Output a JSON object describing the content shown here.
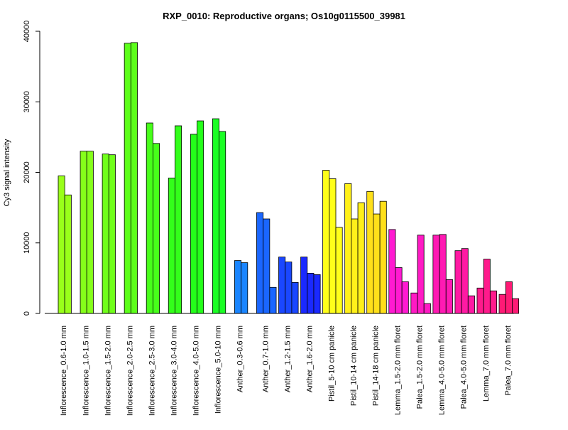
{
  "chart_data": {
    "type": "bar",
    "title": "RXP_0010: Reproductive organs; Os10g0115500_39981",
    "xlabel": "",
    "ylabel": "Cy3 signal intensity",
    "ylim": [
      0,
      40000
    ],
    "yticks": [
      0,
      10000,
      20000,
      30000,
      40000
    ],
    "grid": false,
    "legend": "none",
    "groups": [
      {
        "label": "Inflorescence_0.6-1.0 mm",
        "color": "#99ff1a",
        "values": [
          19500,
          16800
        ]
      },
      {
        "label": "Inflorescence_1.0-1.5 mm",
        "color": "#85ff1a",
        "values": [
          23000,
          23000
        ]
      },
      {
        "label": "Inflorescence_1.5-2.0 mm",
        "color": "#70ff1a",
        "values": [
          22600,
          22500
        ]
      },
      {
        "label": "Inflorescence_2.0-2.5 mm",
        "color": "#5cff1a",
        "values": [
          38300,
          38400
        ]
      },
      {
        "label": "Inflorescence_2.5-3.0 mm",
        "color": "#47ff1a",
        "values": [
          27000,
          24100
        ]
      },
      {
        "label": "Inflorescence_3.0-4.0 mm",
        "color": "#33ff1a",
        "values": [
          19200,
          26600
        ]
      },
      {
        "label": "Inflorescence_4.0-5.0 mm",
        "color": "#24ff1a",
        "values": [
          25400,
          27300
        ]
      },
      {
        "label": "Inflorescence_5.0-10 mm",
        "color": "#1aff24",
        "values": [
          27600,
          25800
        ]
      },
      {
        "label": "Anther_0.3-0.6 mm",
        "color": "#1a85ff",
        "values": [
          7500,
          7200
        ]
      },
      {
        "label": "Anther_0.7-1.0 mm",
        "color": "#1a66ff",
        "values": [
          14300,
          13400,
          3700
        ]
      },
      {
        "label": "Anther_1.2-1.5 mm",
        "color": "#1a47ff",
        "values": [
          8000,
          7300,
          4400
        ]
      },
      {
        "label": "Anther_1.6-2.0 mm",
        "color": "#1a29ff",
        "values": [
          8000,
          5700,
          5500
        ]
      },
      {
        "label": "Pistil_5-10 cm panicle",
        "color": "#ffff1a",
        "values": [
          20300,
          19100,
          12200
        ]
      },
      {
        "label": "Pistil_10-14 cm panicle",
        "color": "#fff01a",
        "values": [
          18400,
          13400,
          15700
        ]
      },
      {
        "label": "Pistil_14-18 cm panicle",
        "color": "#ffe01a",
        "values": [
          17300,
          14100,
          15900
        ]
      },
      {
        "label": "Lemma_1.5-2.0 mm floret",
        "color": "#ff1ad1",
        "values": [
          11900,
          6500,
          4500
        ]
      },
      {
        "label": "Palea_1.5-2.0 mm floret",
        "color": "#ff1ac4",
        "values": [
          2900,
          11100,
          1400
        ]
      },
      {
        "label": "Lemma_4.0-5.0 mm floret",
        "color": "#ff1ab3",
        "values": [
          11100,
          11200,
          4800
        ]
      },
      {
        "label": "Palea_4.0-5.0 mm floret",
        "color": "#ff1aa3",
        "values": [
          8900,
          9200,
          2500
        ]
      },
      {
        "label": "Lemma_7.0 mm floret",
        "color": "#ff1a8c",
        "values": [
          3600,
          7700,
          3200
        ]
      },
      {
        "label": "Palea_7.0 mm floret",
        "color": "#ff1a75",
        "values": [
          2700,
          4500,
          2100
        ]
      }
    ]
  }
}
